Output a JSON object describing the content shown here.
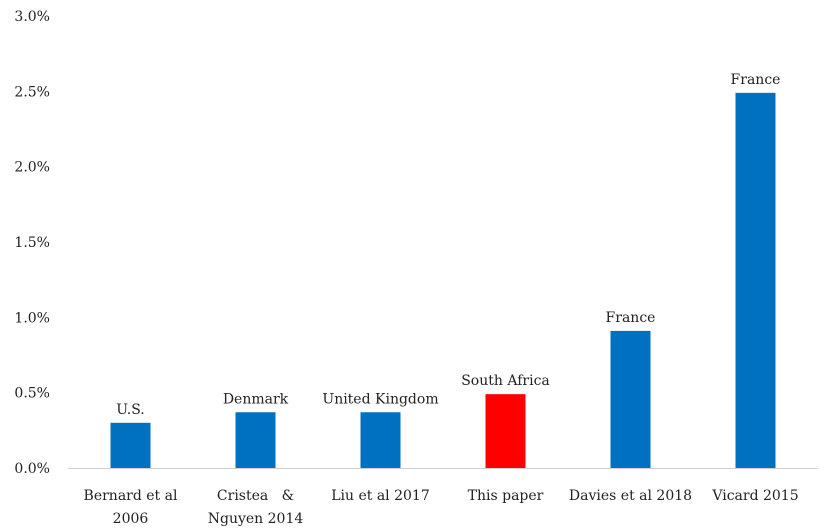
{
  "chart_data": {
    "type": "bar",
    "categories": [
      [
        "Bernard et al",
        "2006"
      ],
      [
        "Cristea   &",
        "Nguyen 2014"
      ],
      [
        "Liu et al 2017"
      ],
      [
        "This paper"
      ],
      [
        "Davies et al 2018"
      ],
      [
        "Vicard 2015"
      ]
    ],
    "values": [
      0.3,
      0.37,
      0.37,
      0.49,
      0.91,
      2.49
    ],
    "data_labels": [
      "U.S.",
      "Denmark",
      "United Kingdom",
      "South Africa",
      "France",
      "France"
    ],
    "bar_colors": [
      "#0070C0",
      "#0070C0",
      "#0070C0",
      "#FF0000",
      "#0070C0",
      "#0070C0"
    ],
    "ylim": [
      0,
      3.0
    ],
    "yticks": [
      0,
      0.5,
      1.0,
      1.5,
      2.0,
      2.5,
      3.0
    ],
    "ytick_labels": [
      "0.0%",
      "0.5%",
      "1.0%",
      "1.5%",
      "2.0%",
      "2.5%",
      "3.0%"
    ],
    "grid": false,
    "title": "",
    "xlabel": "",
    "ylabel": ""
  }
}
